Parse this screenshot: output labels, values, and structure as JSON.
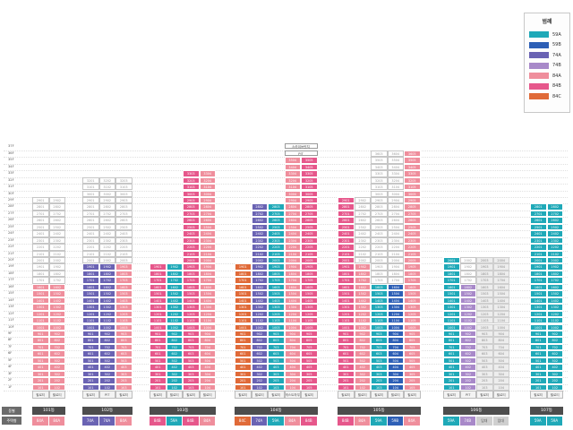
{
  "legend": {
    "title": "범례",
    "items": [
      {
        "label": "59A",
        "color": "#1fa9b8"
      },
      {
        "label": "59B",
        "color": "#2d5fb6"
      },
      {
        "label": "74A",
        "color": "#6a63b3"
      },
      {
        "label": "74B",
        "color": "#a889c9"
      },
      {
        "label": "84A",
        "color": "#ef8e9c"
      },
      {
        "label": "84B",
        "color": "#e6578b"
      },
      {
        "label": "84C",
        "color": "#e06a38"
      }
    ]
  },
  "floor_labels": [
    "1F",
    "2F",
    "3F",
    "4F",
    "5F",
    "6F",
    "7F",
    "8F",
    "9F",
    "10F",
    "11F",
    "12F",
    "13F",
    "14F",
    "15F",
    "16F",
    "17F",
    "18F",
    "19F",
    "20F",
    "21F",
    "22F",
    "23F",
    "24F",
    "25F",
    "26F",
    "27F",
    "28F",
    "29F",
    "30F",
    "31F",
    "32F",
    "33F",
    "34F",
    "35F",
    "36F",
    "37F"
  ],
  "row_labels": {
    "dong": "동별",
    "type": "주택형"
  },
  "buildings": [
    {
      "name": "101동",
      "columns": [
        {
          "code": "01",
          "type": "84A",
          "floors": 29,
          "filled_from": 1,
          "filled_to": 16,
          "base_label": "필로티"
        },
        {
          "code": "02",
          "type": "84A",
          "floors": 29,
          "filled_from": 1,
          "filled_to": 16,
          "base_label": "필로티"
        }
      ],
      "types": [
        "84A",
        "84A"
      ]
    },
    {
      "name": "102동",
      "columns": [
        {
          "code": "01",
          "type": "74A",
          "floors": 32,
          "filled_from": 1,
          "filled_to": 19,
          "base_label": "필로티"
        },
        {
          "code": "02",
          "type": "74A",
          "floors": 32,
          "filled_from": 1,
          "filled_to": 19,
          "base_label": "PIT"
        },
        {
          "code": "03",
          "type": "84A",
          "floors": 32,
          "filled_from": 1,
          "filled_to": 19,
          "base_label": "필로티"
        }
      ],
      "types": [
        "74A",
        "74A",
        "84A"
      ]
    },
    {
      "name": "103동",
      "columns": [
        {
          "code": "01",
          "type": "84B",
          "floors": 19,
          "filled_from": 1,
          "filled_to": 19,
          "base_label": "필로티"
        },
        {
          "code": "02",
          "type": "59A",
          "floors": 19,
          "filled_from": 1,
          "filled_to": 19,
          "base_label": "필로티"
        },
        {
          "code": "03",
          "type": "84B",
          "floors": 33,
          "filled_from": 1,
          "filled_to": 33,
          "base_label": "필로티"
        },
        {
          "code": "04",
          "type": "84A",
          "floors": 33,
          "filled_from": 1,
          "filled_to": 33,
          "base_label": "필로티"
        }
      ],
      "types": [
        "84B",
        "59A",
        "84B",
        "84A"
      ]
    },
    {
      "name": "104동",
      "columns": [
        {
          "code": "01",
          "type": "84C",
          "floors": 19,
          "filled_from": 1,
          "filled_to": 19,
          "base_label": "필로티"
        },
        {
          "code": "02",
          "type": "74A",
          "floors": 28,
          "filled_from": 1,
          "filled_to": 28,
          "base_label": "필로티"
        },
        {
          "code": "03",
          "type": "59A",
          "floors": 28,
          "filled_from": 1,
          "filled_to": 28,
          "base_label": "필로티"
        },
        {
          "code": "04",
          "type": "84A",
          "floors": 35,
          "filled_from": 1,
          "filled_to": 35,
          "base_label": "게스트하우스"
        },
        {
          "code": "05",
          "type": "84B",
          "floors": 35,
          "filled_from": 1,
          "filled_to": 35,
          "base_label": "필로티"
        }
      ],
      "types": [
        "84C",
        "74A",
        "59A",
        "84A",
        "84B"
      ],
      "skybridge": {
        "label": "스카이브릿지",
        "pit": "PIT"
      }
    },
    {
      "name": "105동",
      "columns": [
        {
          "code": "01",
          "type": "84B",
          "floors": 29,
          "filled_from": 1,
          "filled_to": 29,
          "base_label": "필로티"
        },
        {
          "code": "02",
          "type": "84A",
          "floors": 29,
          "filled_from": 1,
          "filled_to": 19,
          "base_label": "필로티"
        },
        {
          "code": "03",
          "type": "59A",
          "floors": 36,
          "filled_from": 1,
          "filled_to": 16,
          "base_label": "필로티"
        },
        {
          "code": "04",
          "type": "59B",
          "floors": 36,
          "filled_from": 1,
          "filled_to": 16,
          "base_label": "필로티"
        },
        {
          "code": "05",
          "type": "84A",
          "floors": 36,
          "filled_from": 1,
          "filled_to": 36,
          "base_label": "필로티"
        }
      ],
      "types": [
        "84B",
        "84A",
        "59A",
        "59B",
        "84A"
      ]
    },
    {
      "name": "106동",
      "columns": [
        {
          "code": "01",
          "type": "59A",
          "floors": 20,
          "filled_from": 1,
          "filled_to": 20,
          "base_label": "필로티"
        },
        {
          "code": "02",
          "type": "74B",
          "floors": 20,
          "filled_from": 1,
          "filled_to": 16,
          "base_label": "PIT"
        },
        {
          "code": "03",
          "type": "임대",
          "floors": 20,
          "filled_from": 0,
          "filled_to": 0,
          "base_label": "필로티"
        },
        {
          "code": "04",
          "type": "임대",
          "floors": 20,
          "filled_from": 0,
          "filled_to": 0,
          "base_label": "필로티"
        }
      ],
      "types": [
        "59A",
        "74B",
        "임대",
        "임대"
      ]
    },
    {
      "name": "107동",
      "columns": [
        {
          "code": "01",
          "type": "59A",
          "floors": 28,
          "filled_from": 1,
          "filled_to": 28,
          "base_label": "필로티"
        },
        {
          "code": "02",
          "type": "59A",
          "floors": 28,
          "filled_from": 1,
          "filled_to": 28,
          "base_label": "필로티"
        }
      ],
      "types": [
        "59A",
        "59A"
      ]
    }
  ],
  "type_colors": {
    "59A": "#1fa9b8",
    "59B": "#2d5fb6",
    "74A": "#6a63b3",
    "74B": "#a889c9",
    "84A": "#ef8e9c",
    "84B": "#e6578b",
    "84C": "#e06a38",
    "임대": "#cfcfcf"
  }
}
